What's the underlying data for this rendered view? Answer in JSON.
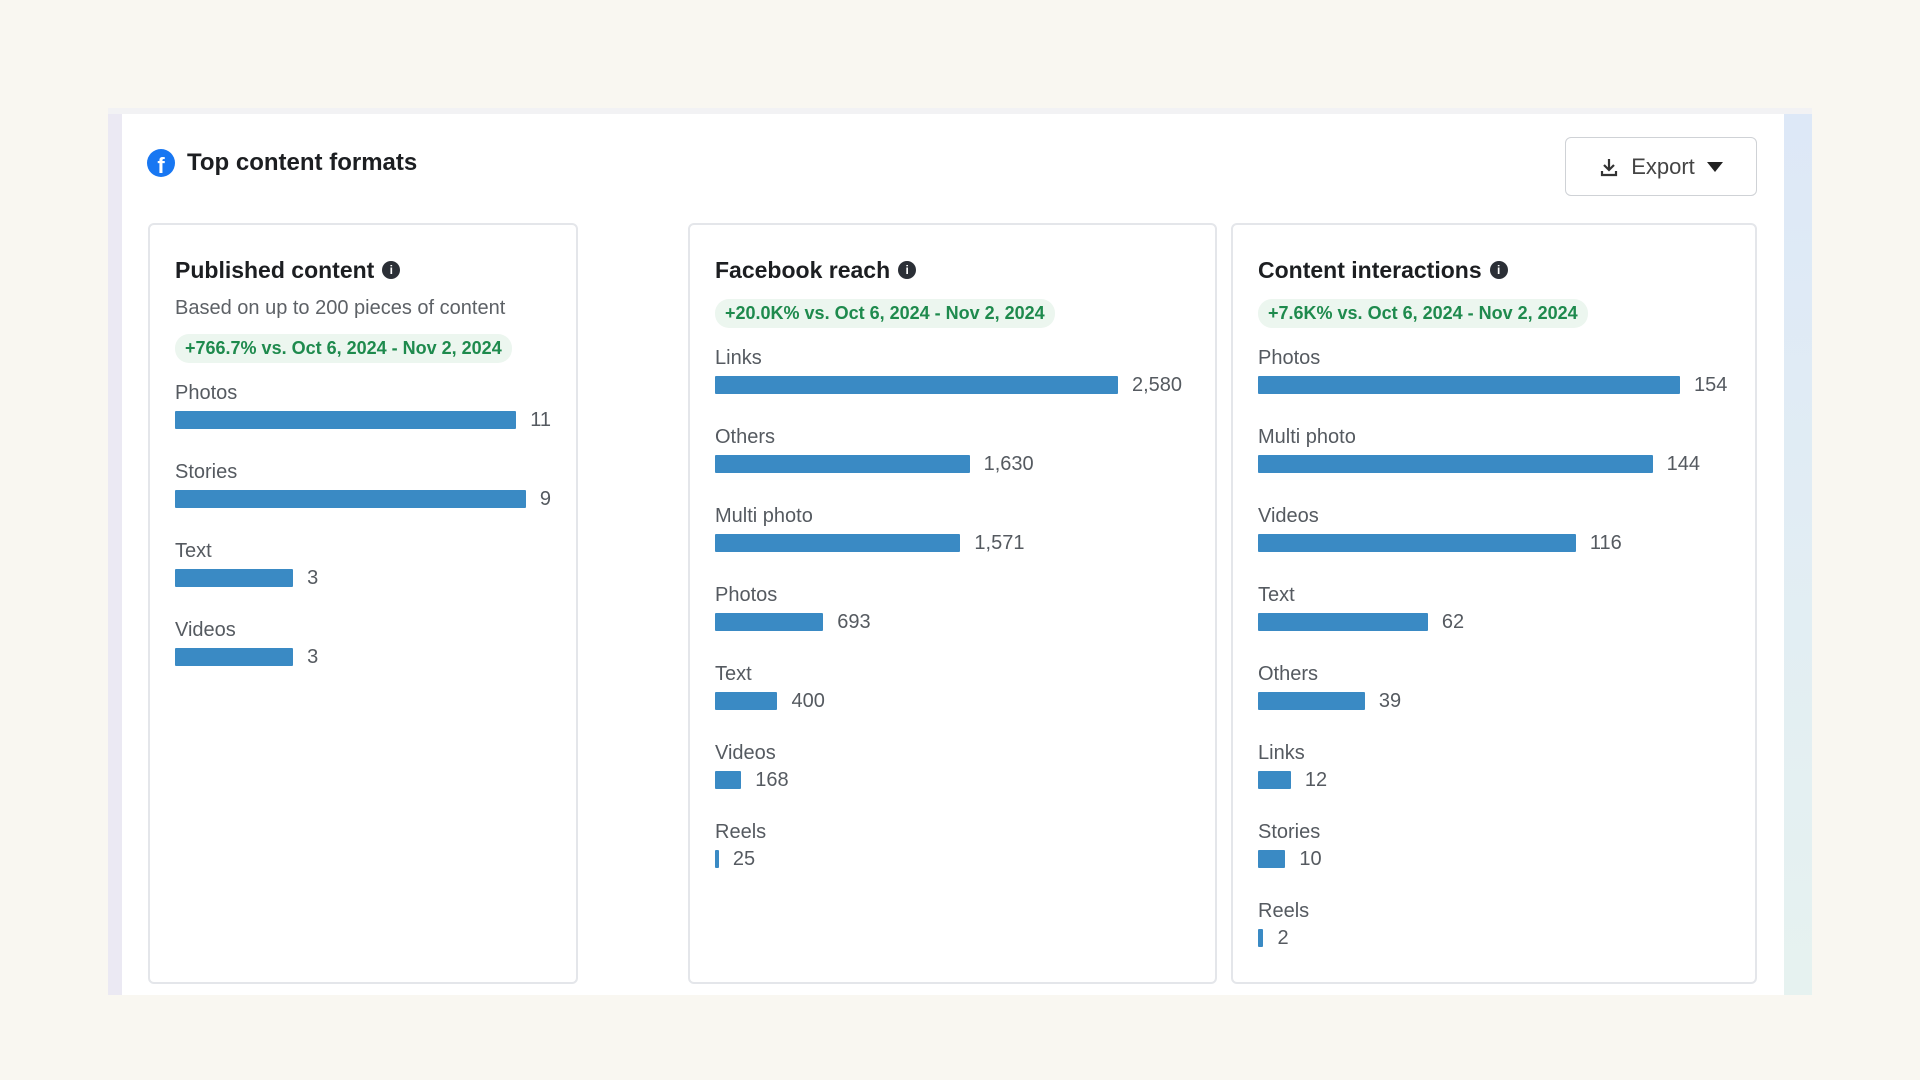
{
  "header": {
    "title": "Top content formats",
    "icon": "facebook-icon",
    "export_label": "Export"
  },
  "colors": {
    "bar": "#3a8ac4",
    "badge_text": "#1e8a4d",
    "badge_bg": "#ecf6ef"
  },
  "chart_data": [
    {
      "type": "bar",
      "title": "Published content",
      "subtitle": "Based on up to 200 pieces of content",
      "badge": "+766.7% vs. Oct 6, 2024 - Nov 2, 2024",
      "categories": [
        "Photos",
        "Stories",
        "Text",
        "Videos"
      ],
      "values": [
        11,
        9,
        3,
        3
      ],
      "labels": [
        "11",
        "9",
        "3",
        "3"
      ]
    },
    {
      "type": "bar",
      "title": "Facebook reach",
      "badge": "+20.0K% vs. Oct 6, 2024 - Nov 2, 2024",
      "categories": [
        "Links",
        "Others",
        "Multi photo",
        "Photos",
        "Text",
        "Videos",
        "Reels"
      ],
      "values": [
        2580,
        1630,
        1571,
        693,
        400,
        168,
        25
      ],
      "labels": [
        "2,580",
        "1,630",
        "1,571",
        "693",
        "400",
        "168",
        "25"
      ]
    },
    {
      "type": "bar",
      "title": "Content interactions",
      "badge": "+7.6K% vs. Oct 6, 2024 - Nov 2, 2024",
      "categories": [
        "Photos",
        "Multi photo",
        "Videos",
        "Text",
        "Others",
        "Links",
        "Stories",
        "Reels"
      ],
      "values": [
        154,
        144,
        116,
        62,
        39,
        12,
        10,
        2
      ],
      "labels": [
        "154",
        "144",
        "116",
        "62",
        "39",
        "12",
        "10",
        "2"
      ]
    }
  ]
}
